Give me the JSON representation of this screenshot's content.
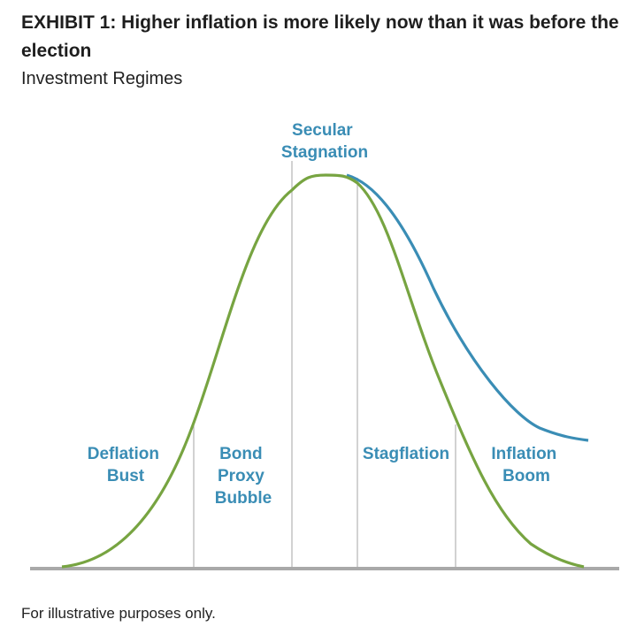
{
  "title": "EXHIBIT 1: Higher inflation is more likely now than it was before the election",
  "subtitle": "Investment Regimes",
  "footnote": "For illustrative purposes only.",
  "colors": {
    "green_curve": "#77a441",
    "blue_curve": "#3a8db5",
    "label_text": "#3a8db5",
    "divider": "#b5b5b5",
    "baseline": "#a9a9a9"
  },
  "regimes": [
    {
      "lines": [
        "Deflation",
        "Bust"
      ]
    },
    {
      "lines": [
        "Bond",
        "Proxy",
        "Bubble"
      ]
    },
    {
      "lines": [
        "Secular",
        "Stagnation"
      ]
    },
    {
      "lines": [
        "Stagflation"
      ]
    },
    {
      "lines": [
        "Inflation",
        "Boom"
      ]
    }
  ]
}
